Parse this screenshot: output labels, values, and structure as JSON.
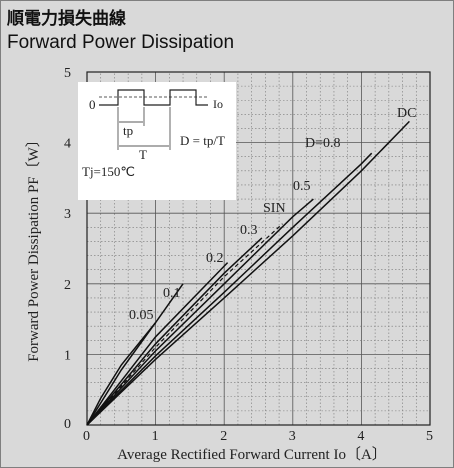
{
  "title_jp": "順電力損失曲線",
  "title_en": "Forward Power Dissipation",
  "chart_data": {
    "type": "line",
    "xlabel": "Average Rectified Forward Current  Io〔A〕",
    "ylabel": "Forward Power Dissipation  PF〔W〕",
    "xlim": [
      0,
      5
    ],
    "ylim": [
      0,
      5
    ],
    "x_ticks": [
      "0",
      "1",
      "2",
      "3",
      "4",
      "5"
    ],
    "y_ticks": [
      "0",
      "1",
      "2",
      "3",
      "4",
      "5"
    ],
    "grid": true,
    "series": [
      {
        "name": "0.05",
        "x": [
          0,
          0.2,
          0.5,
          1.0
        ],
        "y": [
          0,
          0.38,
          0.85,
          1.45
        ],
        "dashed": false
      },
      {
        "name": "0.1",
        "x": [
          0,
          0.5,
          1.0,
          1.4
        ],
        "y": [
          0,
          0.78,
          1.45,
          2.0
        ],
        "dashed": false
      },
      {
        "name": "0.2",
        "x": [
          0,
          1.0,
          2.0,
          2.05
        ],
        "y": [
          0,
          1.25,
          2.25,
          2.3
        ],
        "dashed": false
      },
      {
        "name": "0.3",
        "x": [
          0,
          1.0,
          2.0,
          2.55
        ],
        "y": [
          0,
          1.15,
          2.15,
          2.65
        ],
        "dashed": false
      },
      {
        "name": "SIN",
        "x": [
          0,
          1.0,
          2.0,
          2.85
        ],
        "y": [
          0,
          1.1,
          2.1,
          2.85
        ],
        "dashed": true
      },
      {
        "name": "0.5",
        "x": [
          0,
          1.0,
          2.0,
          3.0,
          3.3
        ],
        "y": [
          0,
          1.05,
          2.0,
          2.95,
          3.2
        ],
        "dashed": false
      },
      {
        "name": "D=0.8",
        "x": [
          0,
          1.0,
          2.0,
          3.0,
          4.0,
          4.15
        ],
        "y": [
          0,
          0.98,
          1.88,
          2.8,
          3.7,
          3.85
        ],
        "dashed": false
      },
      {
        "name": "DC",
        "x": [
          0,
          1.0,
          2.0,
          3.0,
          4.0,
          4.7
        ],
        "y": [
          0,
          0.93,
          1.8,
          2.68,
          3.6,
          4.3
        ],
        "dashed": false
      }
    ],
    "annotations": {
      "tj": "Tj=150℃",
      "inset": {
        "zero": "0",
        "io": "Io",
        "tp": "tp",
        "t": "T",
        "duty": "D = tp/T"
      }
    }
  }
}
